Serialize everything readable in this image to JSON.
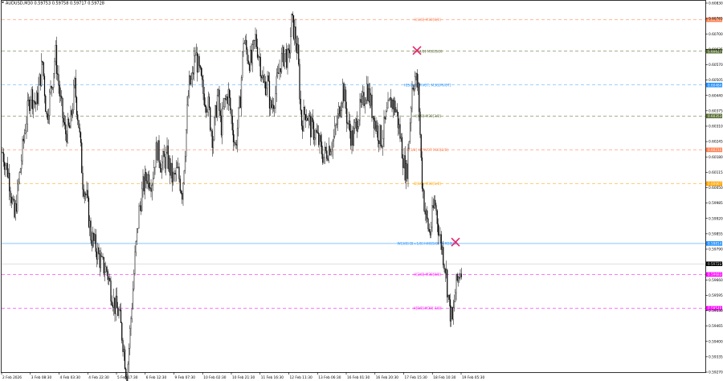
{
  "window": {
    "symbol_info": "AUDUSD,M30 0.59753 0.59758 0.59717 0.59728"
  },
  "chart_data": {
    "type": "candlestick",
    "title": "AUDUSD,M30",
    "ylim": [
      0.5927,
      0.6084
    ],
    "price_ticks": [
      "0.60830",
      "0.60765",
      "0.60700",
      "0.60635",
      "0.60570",
      "0.60505",
      "0.60440",
      "0.60375",
      "0.60310",
      "0.60245",
      "0.60180",
      "0.60115",
      "0.60050",
      "0.59985",
      "0.59920",
      "0.59855",
      "0.59790",
      "0.59725",
      "0.59660",
      "0.59595",
      "0.59530",
      "0.59465",
      "0.59400",
      "0.59335",
      "0.59270"
    ],
    "time_ticks": [
      "2 Feb 2026",
      "3 Feb 08:30",
      "4 Feb 03:30",
      "4 Feb 22:30",
      "5 Feb 17:30",
      "6 Feb 12:30",
      "9 Feb 07:30",
      "10 Feb 02:30",
      "10 Feb 21:30",
      "11 Feb 16:30",
      "12 Feb 11:30",
      "13 Feb 06:30",
      "16 Feb 01:30",
      "16 Feb 20:30",
      "17 Feb 15:30",
      "18 Feb 10:30",
      "19 Feb 05:30"
    ],
    "current_price": "0.59728",
    "close_path": [
      [
        0,
        0.602
      ],
      [
        8,
        0.601
      ],
      [
        15,
        0.5992
      ],
      [
        22,
        0.6012
      ],
      [
        28,
        0.603
      ],
      [
        35,
        0.6045
      ],
      [
        42,
        0.604
      ],
      [
        50,
        0.6058
      ],
      [
        55,
        0.6035
      ],
      [
        62,
        0.605
      ],
      [
        66,
        0.6062
      ],
      [
        72,
        0.6042
      ],
      [
        78,
        0.6028
      ],
      [
        84,
        0.603
      ],
      [
        90,
        0.6048
      ],
      [
        95,
        0.6032
      ],
      [
        100,
        0.6008
      ],
      [
        105,
        0.6
      ],
      [
        110,
        0.5985
      ],
      [
        118,
        0.5978
      ],
      [
        124,
        0.5972
      ],
      [
        130,
        0.597
      ],
      [
        135,
        0.5962
      ],
      [
        140,
        0.5955
      ],
      [
        145,
        0.5952
      ],
      [
        150,
        0.594
      ],
      [
        155,
        0.5925
      ],
      [
        160,
        0.595
      ],
      [
        165,
        0.5975
      ],
      [
        170,
        0.5995
      ],
      [
        175,
        0.6005
      ],
      [
        180,
        0.601
      ],
      [
        186,
        0.6008
      ],
      [
        192,
        0.6022
      ],
      [
        198,
        0.6015
      ],
      [
        205,
        0.6018
      ],
      [
        212,
        0.6008
      ],
      [
        218,
        0.6012
      ],
      [
        224,
        0.6003
      ],
      [
        228,
        0.6025
      ],
      [
        232,
        0.6048
      ],
      [
        236,
        0.605
      ],
      [
        240,
        0.6062
      ],
      [
        246,
        0.6052
      ],
      [
        250,
        0.6045
      ],
      [
        256,
        0.604
      ],
      [
        262,
        0.6025
      ],
      [
        268,
        0.6045
      ],
      [
        272,
        0.603
      ],
      [
        276,
        0.604
      ],
      [
        281,
        0.6045
      ],
      [
        286,
        0.6032
      ],
      [
        290,
        0.6022
      ],
      [
        296,
        0.6042
      ],
      [
        300,
        0.6068
      ],
      [
        306,
        0.606
      ],
      [
        310,
        0.6058
      ],
      [
        315,
        0.6068
      ],
      [
        320,
        0.606
      ],
      [
        325,
        0.6048
      ],
      [
        330,
        0.605
      ],
      [
        334,
        0.6038
      ],
      [
        340,
        0.6045
      ],
      [
        346,
        0.6058
      ],
      [
        352,
        0.6062
      ],
      [
        356,
        0.6058
      ],
      [
        360,
        0.6075
      ],
      [
        364,
        0.607
      ],
      [
        368,
        0.606
      ],
      [
        372,
        0.6032
      ],
      [
        378,
        0.6038
      ],
      [
        384,
        0.603
      ],
      [
        390,
        0.6028
      ],
      [
        396,
        0.6022
      ],
      [
        400,
        0.6018
      ],
      [
        406,
        0.6022
      ],
      [
        412,
        0.6025
      ],
      [
        418,
        0.6035
      ],
      [
        424,
        0.6048
      ],
      [
        430,
        0.6032
      ],
      [
        436,
        0.6025
      ],
      [
        442,
        0.6035
      ],
      [
        448,
        0.604
      ],
      [
        454,
        0.6048
      ],
      [
        460,
        0.6038
      ],
      [
        466,
        0.603
      ],
      [
        472,
        0.6025
      ],
      [
        478,
        0.6035
      ],
      [
        484,
        0.6042
      ],
      [
        490,
        0.6038
      ],
      [
        496,
        0.6025
      ],
      [
        500,
        0.6015
      ],
      [
        503,
        0.601
      ],
      [
        506,
        0.6025
      ],
      [
        510,
        0.6048
      ],
      [
        514,
        0.6052
      ],
      [
        518,
        0.6045
      ],
      [
        522,
        0.601
      ],
      [
        526,
        0.5995
      ],
      [
        532,
        0.5985
      ],
      [
        538,
        0.6
      ],
      [
        544,
        0.5985
      ],
      [
        548,
        0.5978
      ],
      [
        552,
        0.597
      ],
      [
        556,
        0.5955
      ],
      [
        560,
        0.5948
      ],
      [
        564,
        0.5962
      ],
      [
        568,
        0.5968
      ],
      [
        572,
        0.5973
      ]
    ],
    "levels": [
      {
        "label": "H[3/8] M30[0/8]",
        "price": "0.60760",
        "color": "#ff7f50",
        "dash": "4,3"
      },
      {
        "label": "H+[4/8] M30[5/8]",
        "price": "0.60627",
        "color": "#556b2f",
        "dash": "4,3"
      },
      {
        "label": "H[5/8] H-PIVOT, M30[PIVOT]",
        "price": "0.60484",
        "color": "#1e90ff",
        "dash": "4,3"
      },
      {
        "label": "H[6/8] M30[3/8]",
        "price": "0.60353",
        "color": "#556b2f",
        "dash": "4,3"
      },
      {
        "label": "H[1/8] H-PIVOT M30[2/8]",
        "price": "0.60210",
        "color": "#ff7f50",
        "dash": "4,3"
      },
      {
        "label": "D[1/8] M30[1/8]",
        "price": "0.60067",
        "color": "#ffa500",
        "dash": "4,3"
      },
      {
        "label": "W[3/8] D[+1/8] H40[5/8] W M30[UP",
        "price": "0.59814",
        "color": "#1e90ff",
        "dash": "0"
      },
      {
        "label": "H[2/8] M30[0/8]",
        "price": "0.59683",
        "color": "#ff00ff",
        "dash": "4,3"
      },
      {
        "label": "H[0/8] M30[-1/8]",
        "price": "0.59540",
        "color": "#ff00ff",
        "dash": "4,3"
      }
    ],
    "markers": [
      {
        "type": "cross",
        "x_index": 516,
        "price": 0.6063,
        "color": "#e8236b"
      },
      {
        "type": "cross",
        "x_index": 564,
        "price": 0.5982,
        "color": "#e8236b"
      }
    ]
  }
}
